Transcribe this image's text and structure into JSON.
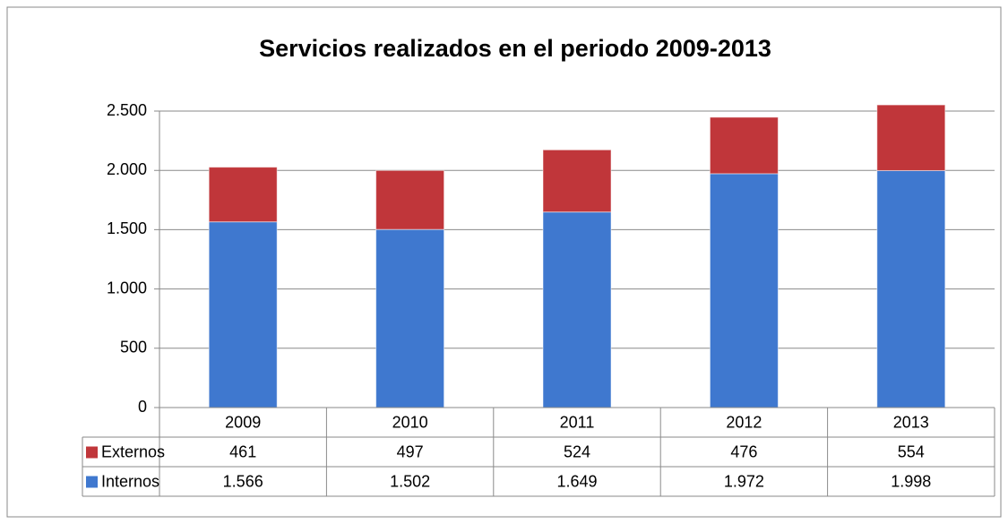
{
  "chart_data": {
    "type": "stacked_bar",
    "title": "Servicios realizados en el periodo 2009-2013",
    "categories": [
      "2009",
      "2010",
      "2011",
      "2012",
      "2013"
    ],
    "series": [
      {
        "name": "Internos",
        "color": "#3f78cf",
        "values": [
          1566,
          1502,
          1649,
          1972,
          1998
        ],
        "value_labels": [
          "1.566",
          "1.502",
          "1.649",
          "1.972",
          "1.998"
        ]
      },
      {
        "name": "Externos",
        "color": "#c0363a",
        "values": [
          461,
          497,
          524,
          476,
          554
        ]
      }
    ],
    "ylim": [
      0,
      2500
    ],
    "yticks": [
      0,
      500,
      {
        "value": 1000,
        "label": "1.000"
      },
      {
        "value": 1500,
        "label": "1.500"
      },
      {
        "value": 2000,
        "label": "2.000"
      },
      {
        "value": 2500,
        "label": "2.500"
      }
    ],
    "grid": true,
    "data_table": true
  }
}
